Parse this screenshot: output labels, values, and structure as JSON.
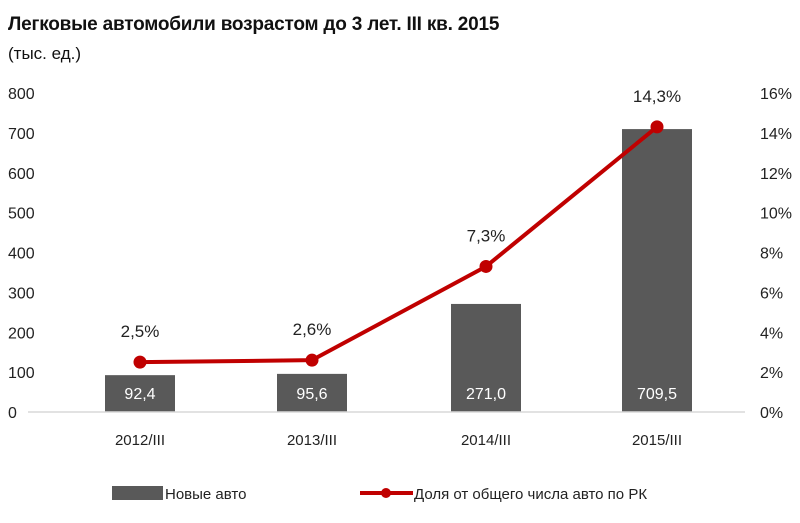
{
  "chart_data": {
    "type": "bar+line",
    "title": "Легковые автомобили  возрастом до 3 лет. III кв. 2015",
    "subtitle": "(тыс. ед.)",
    "categories": [
      "2012/III",
      "2013/III",
      "2014/III",
      "2015/III"
    ],
    "series": [
      {
        "name": "Новые авто",
        "type": "bar",
        "axis": "left",
        "values": [
          92.4,
          95.6,
          271.0,
          709.5
        ],
        "labels": [
          "92,4",
          "95,6",
          "271,0",
          "709,5"
        ],
        "color": "#595959"
      },
      {
        "name": "Доля от общего числа авто по РК",
        "type": "line",
        "axis": "right",
        "values": [
          2.5,
          2.6,
          7.3,
          14.3
        ],
        "labels": [
          "2,5%",
          "2,6%",
          "7,3%",
          "14,3%"
        ],
        "color": "#c00000"
      }
    ],
    "y_left": {
      "range": [
        0,
        800
      ],
      "ticks": [
        "0",
        "100",
        "200",
        "300",
        "400",
        "500",
        "600",
        "700",
        "800"
      ]
    },
    "y_right": {
      "range": [
        0,
        16
      ],
      "ticks": [
        "0%",
        "2%",
        "4%",
        "6%",
        "8%",
        "10%",
        "12%",
        "14%",
        "16%"
      ]
    },
    "grid": false,
    "legend": "bottom"
  }
}
